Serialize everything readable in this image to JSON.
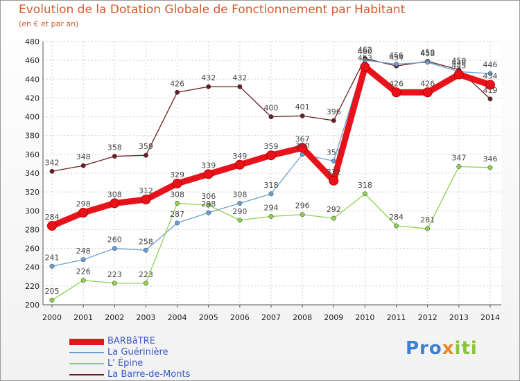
{
  "header": {
    "title": "Evolution de la Dotation Globale de Fonctionnement par Habitant",
    "subtitle": "(en € et par an)"
  },
  "logo": {
    "part1": "Pro",
    "part2": "x",
    "part3": "iti"
  },
  "chart_data": {
    "type": "line",
    "x": [
      2000,
      2001,
      2002,
      2003,
      2004,
      2005,
      2006,
      2007,
      2008,
      2009,
      2010,
      2011,
      2012,
      2013,
      2014
    ],
    "ylim": [
      200,
      480
    ],
    "yticks": [
      200,
      220,
      240,
      260,
      280,
      300,
      320,
      340,
      360,
      380,
      400,
      420,
      440,
      460,
      480
    ],
    "grid": true,
    "legend_position": "bottom-left",
    "series": [
      {
        "name": "BARBâTRE",
        "color": "#e8131a",
        "values": [
          284,
          298,
          308,
          312,
          329,
          339,
          349,
          359,
          367,
          332,
          453,
          426,
          426,
          445,
          434
        ]
      },
      {
        "name": "La Guérinière",
        "color": "#6a9fd2",
        "values": [
          241,
          248,
          260,
          258,
          287,
          298,
          308,
          318,
          360,
          353,
          460,
          456,
          458,
          448,
          446
        ]
      },
      {
        "name": "L' Épine",
        "color": "#8fd14f",
        "values": [
          205,
          226,
          223,
          223,
          308,
          306,
          290,
          294,
          296,
          292,
          318,
          284,
          281,
          347,
          346
        ]
      },
      {
        "name": "La Barre-de-Monts",
        "color": "#6b1e22",
        "values": [
          342,
          348,
          358,
          359,
          426,
          432,
          432,
          400,
          401,
          396,
          462,
          454,
          459,
          450,
          419
        ]
      }
    ]
  }
}
